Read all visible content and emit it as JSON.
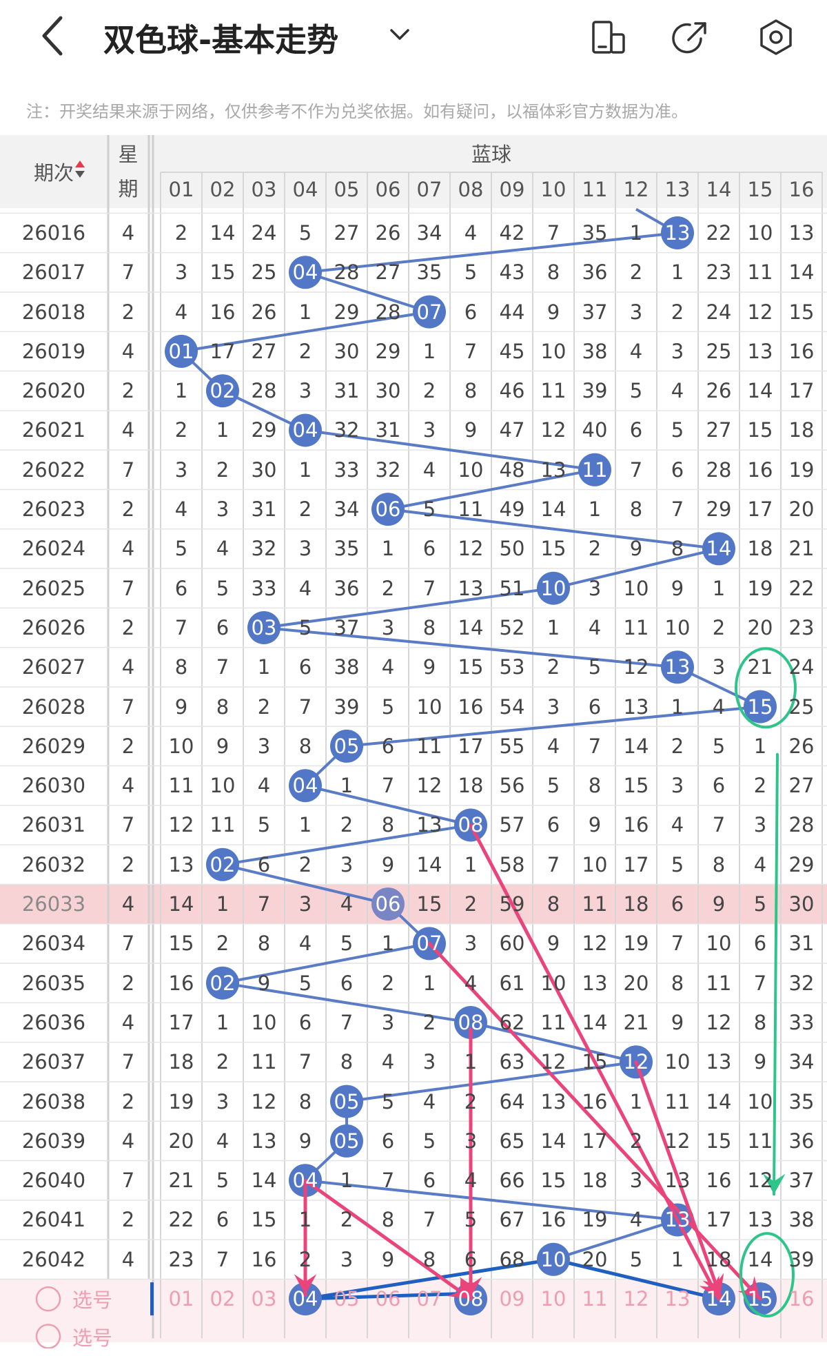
{
  "header": {
    "back_icon": "chevron-left-icon",
    "title": "双色球-基本走势",
    "dropdown_icon": "chevron-down-icon",
    "icons": [
      "phone-toggle-icon",
      "share-icon",
      "settings-icon"
    ]
  },
  "note": "注：开奖结果来源于网络，仅供参考不作为兑奖依据。如有疑问，以福体彩官方数据为准。",
  "table": {
    "col_period": "期次",
    "col_weekday_line1": "星",
    "col_weekday_line2": "期",
    "group_title": "蓝球",
    "columns": [
      "01",
      "02",
      "03",
      "04",
      "05",
      "06",
      "07",
      "08",
      "09",
      "10",
      "11",
      "12",
      "13",
      "14",
      "15",
      "16"
    ],
    "highlight_period": "26033",
    "rows": [
      {
        "period": "26016",
        "day": "4",
        "hit": 13,
        "vals": [
          "2",
          "14",
          "24",
          "5",
          "27",
          "26",
          "34",
          "4",
          "42",
          "7",
          "35",
          "1",
          "13",
          "22",
          "10",
          "13"
        ]
      },
      {
        "period": "26017",
        "day": "7",
        "hit": 4,
        "vals": [
          "3",
          "15",
          "25",
          "04",
          "28",
          "27",
          "35",
          "5",
          "43",
          "8",
          "36",
          "2",
          "1",
          "23",
          "11",
          "14"
        ]
      },
      {
        "period": "26018",
        "day": "2",
        "hit": 7,
        "vals": [
          "4",
          "16",
          "26",
          "1",
          "29",
          "28",
          "07",
          "6",
          "44",
          "9",
          "37",
          "3",
          "2",
          "24",
          "12",
          "15"
        ]
      },
      {
        "period": "26019",
        "day": "4",
        "hit": 1,
        "vals": [
          "01",
          "17",
          "27",
          "2",
          "30",
          "29",
          "1",
          "7",
          "45",
          "10",
          "38",
          "4",
          "3",
          "25",
          "13",
          "16"
        ]
      },
      {
        "period": "26020",
        "day": "2",
        "hit": 2,
        "vals": [
          "1",
          "02",
          "28",
          "3",
          "31",
          "30",
          "2",
          "8",
          "46",
          "11",
          "39",
          "5",
          "4",
          "26",
          "14",
          "17"
        ]
      },
      {
        "period": "26021",
        "day": "4",
        "hit": 4,
        "vals": [
          "2",
          "1",
          "29",
          "04",
          "32",
          "31",
          "3",
          "9",
          "47",
          "12",
          "40",
          "6",
          "5",
          "27",
          "15",
          "18"
        ]
      },
      {
        "period": "26022",
        "day": "7",
        "hit": 11,
        "vals": [
          "3",
          "2",
          "30",
          "1",
          "33",
          "32",
          "4",
          "10",
          "48",
          "13",
          "11",
          "7",
          "6",
          "28",
          "16",
          "19"
        ]
      },
      {
        "period": "26023",
        "day": "2",
        "hit": 6,
        "vals": [
          "4",
          "3",
          "31",
          "2",
          "34",
          "06",
          "5",
          "11",
          "49",
          "14",
          "1",
          "8",
          "7",
          "29",
          "17",
          "20"
        ]
      },
      {
        "period": "26024",
        "day": "4",
        "hit": 14,
        "vals": [
          "5",
          "4",
          "32",
          "3",
          "35",
          "1",
          "6",
          "12",
          "50",
          "15",
          "2",
          "9",
          "8",
          "14",
          "18",
          "21"
        ]
      },
      {
        "period": "26025",
        "day": "7",
        "hit": 10,
        "vals": [
          "6",
          "5",
          "33",
          "4",
          "36",
          "2",
          "7",
          "13",
          "51",
          "10",
          "3",
          "10",
          "9",
          "1",
          "19",
          "22"
        ]
      },
      {
        "period": "26026",
        "day": "2",
        "hit": 3,
        "vals": [
          "7",
          "6",
          "03",
          "5",
          "37",
          "3",
          "8",
          "14",
          "52",
          "1",
          "4",
          "11",
          "10",
          "2",
          "20",
          "23"
        ]
      },
      {
        "period": "26027",
        "day": "4",
        "hit": 13,
        "vals": [
          "8",
          "7",
          "1",
          "6",
          "38",
          "4",
          "9",
          "15",
          "53",
          "2",
          "5",
          "12",
          "13",
          "3",
          "21",
          "24"
        ]
      },
      {
        "period": "26028",
        "day": "7",
        "hit": 15,
        "vals": [
          "9",
          "8",
          "2",
          "7",
          "39",
          "5",
          "10",
          "16",
          "54",
          "3",
          "6",
          "13",
          "1",
          "4",
          "15",
          "25"
        ]
      },
      {
        "period": "26029",
        "day": "2",
        "hit": 5,
        "vals": [
          "10",
          "9",
          "3",
          "8",
          "05",
          "6",
          "11",
          "17",
          "55",
          "4",
          "7",
          "14",
          "2",
          "5",
          "1",
          "26"
        ]
      },
      {
        "period": "26030",
        "day": "4",
        "hit": 4,
        "vals": [
          "11",
          "10",
          "4",
          "04",
          "1",
          "7",
          "12",
          "18",
          "56",
          "5",
          "8",
          "15",
          "3",
          "6",
          "2",
          "27"
        ]
      },
      {
        "period": "26031",
        "day": "7",
        "hit": 8,
        "vals": [
          "12",
          "11",
          "5",
          "1",
          "2",
          "8",
          "13",
          "08",
          "57",
          "6",
          "9",
          "16",
          "4",
          "7",
          "3",
          "28"
        ]
      },
      {
        "period": "26032",
        "day": "2",
        "hit": 2,
        "vals": [
          "13",
          "02",
          "6",
          "2",
          "3",
          "9",
          "14",
          "1",
          "58",
          "7",
          "10",
          "17",
          "5",
          "8",
          "4",
          "29"
        ]
      },
      {
        "period": "26033",
        "day": "4",
        "hit": 6,
        "vals": [
          "14",
          "1",
          "7",
          "3",
          "4",
          "06",
          "15",
          "2",
          "59",
          "8",
          "11",
          "18",
          "6",
          "9",
          "5",
          "30"
        ]
      },
      {
        "period": "26034",
        "day": "7",
        "hit": 7,
        "vals": [
          "15",
          "2",
          "8",
          "4",
          "5",
          "1",
          "07",
          "3",
          "60",
          "9",
          "12",
          "19",
          "7",
          "10",
          "6",
          "31"
        ]
      },
      {
        "period": "26035",
        "day": "2",
        "hit": 2,
        "vals": [
          "16",
          "02",
          "9",
          "5",
          "6",
          "2",
          "1",
          "4",
          "61",
          "10",
          "13",
          "20",
          "8",
          "11",
          "7",
          "32"
        ]
      },
      {
        "period": "26036",
        "day": "4",
        "hit": 8,
        "vals": [
          "17",
          "1",
          "10",
          "6",
          "7",
          "3",
          "2",
          "08",
          "62",
          "11",
          "14",
          "21",
          "9",
          "12",
          "8",
          "33"
        ]
      },
      {
        "period": "26037",
        "day": "7",
        "hit": 12,
        "vals": [
          "18",
          "2",
          "11",
          "7",
          "8",
          "4",
          "3",
          "1",
          "63",
          "12",
          "15",
          "12",
          "10",
          "13",
          "9",
          "34"
        ]
      },
      {
        "period": "26038",
        "day": "2",
        "hit": 5,
        "vals": [
          "19",
          "3",
          "12",
          "8",
          "05",
          "5",
          "4",
          "2",
          "64",
          "13",
          "16",
          "1",
          "11",
          "14",
          "10",
          "35"
        ]
      },
      {
        "period": "26039",
        "day": "4",
        "hit": 5,
        "vals": [
          "20",
          "4",
          "13",
          "9",
          "05",
          "6",
          "5",
          "3",
          "65",
          "14",
          "17",
          "2",
          "12",
          "15",
          "11",
          "36"
        ]
      },
      {
        "period": "26040",
        "day": "7",
        "hit": 4,
        "vals": [
          "21",
          "5",
          "14",
          "04",
          "1",
          "7",
          "6",
          "4",
          "66",
          "15",
          "18",
          "3",
          "13",
          "16",
          "12",
          "37"
        ]
      },
      {
        "period": "26041",
        "day": "2",
        "hit": 13,
        "vals": [
          "22",
          "6",
          "15",
          "1",
          "2",
          "8",
          "7",
          "5",
          "67",
          "16",
          "19",
          "4",
          "13",
          "17",
          "13",
          "38"
        ]
      },
      {
        "period": "26042",
        "day": "4",
        "hit": 10,
        "vals": [
          "23",
          "7",
          "16",
          "2",
          "3",
          "9",
          "8",
          "6",
          "68",
          "10",
          "20",
          "5",
          "1",
          "18",
          "14",
          "39"
        ]
      }
    ],
    "footer_label": "选号",
    "footer_label2": "选号",
    "footer_selected": [
      4,
      8,
      14,
      15
    ]
  },
  "colors": {
    "ball": "#5277c6",
    "ball_highlight": "#7a86c4",
    "line": "#5a7bc5",
    "pink_arrow": "#ea447a",
    "green_marker": "#2ec58a",
    "highlight_row": "#f8d3d6",
    "footer_row": "#fdeff1"
  }
}
